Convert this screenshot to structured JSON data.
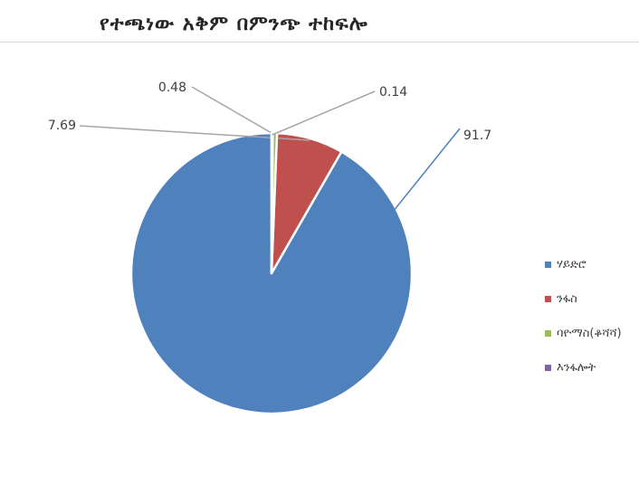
{
  "chart_data": {
    "type": "pie",
    "title": "የተጫነው አቅም በምንጭ ተከፍሎ",
    "categories": [
      "ሃይድሮ",
      "ንፋስ",
      "ባዮማስ(ቆሻሻ)",
      "እንፋሎት"
    ],
    "values": [
      91.7,
      7.69,
      0.48,
      0.14
    ],
    "data_labels": [
      "91.7",
      "7.69",
      "0.48",
      "0.14"
    ],
    "colors": [
      "#4f81bd",
      "#c0504d",
      "#9bbb59",
      "#8064a2"
    ],
    "legend_position": "right",
    "start_angle_deg": 0,
    "direction": "clockwise"
  }
}
